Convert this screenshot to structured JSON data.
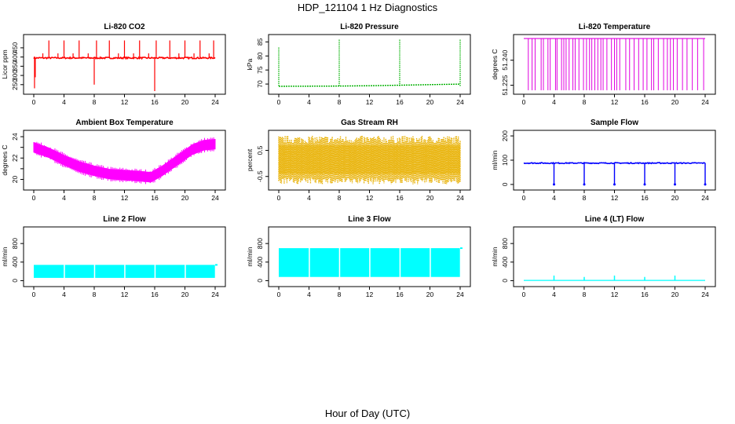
{
  "figure": {
    "title": "HDP_121104  1 Hz Diagnostics",
    "xlabel": "Hour of Day (UTC)"
  },
  "chart_data": [
    {
      "id": "co2",
      "type": "line",
      "title": "Li-820 CO2",
      "ylabel": "Licor ppm",
      "color": "#ff0000",
      "xlim": [
        0,
        24
      ],
      "ylim": [
        215,
        505
      ],
      "xticks": [
        0,
        4,
        8,
        12,
        16,
        20,
        24
      ],
      "yticks": [
        250,
        300,
        350,
        400,
        450
      ],
      "baseline": 395,
      "noise": 8,
      "spikes": [
        {
          "x": 0.1,
          "y": 230
        },
        {
          "x": 0.2,
          "y": 290
        },
        {
          "x": 1.2,
          "y": 420
        },
        {
          "x": 2.0,
          "y": 490
        },
        {
          "x": 3.2,
          "y": 420
        },
        {
          "x": 4.0,
          "y": 490
        },
        {
          "x": 5.2,
          "y": 420
        },
        {
          "x": 6.0,
          "y": 490
        },
        {
          "x": 7.2,
          "y": 420
        },
        {
          "x": 8.0,
          "y": 250
        },
        {
          "x": 8.3,
          "y": 490
        },
        {
          "x": 10.0,
          "y": 490
        },
        {
          "x": 11.2,
          "y": 420
        },
        {
          "x": 12.0,
          "y": 490
        },
        {
          "x": 13.2,
          "y": 420
        },
        {
          "x": 14.0,
          "y": 490
        },
        {
          "x": 15.2,
          "y": 420
        },
        {
          "x": 16.0,
          "y": 215
        },
        {
          "x": 16.2,
          "y": 490
        },
        {
          "x": 18.0,
          "y": 490
        },
        {
          "x": 19.2,
          "y": 420
        },
        {
          "x": 20.0,
          "y": 490
        },
        {
          "x": 21.2,
          "y": 420
        },
        {
          "x": 22.0,
          "y": 490
        },
        {
          "x": 23.2,
          "y": 420
        },
        {
          "x": 23.8,
          "y": 490
        }
      ]
    },
    {
      "id": "pressure",
      "type": "line",
      "title": "Li-820 Pressure",
      "ylabel": "kPa",
      "color": "#00b000",
      "xlim": [
        0,
        24
      ],
      "ylim": [
        67.5,
        86.5
      ],
      "xticks": [
        0,
        4,
        8,
        12,
        16,
        20,
        24
      ],
      "yticks": [
        70,
        75,
        80,
        85
      ],
      "trend": [
        {
          "x": 0,
          "y": 69.2
        },
        {
          "x": 8,
          "y": 69.3
        },
        {
          "x": 12,
          "y": 69.4
        },
        {
          "x": 16,
          "y": 69.6
        },
        {
          "x": 20,
          "y": 69.8
        },
        {
          "x": 24,
          "y": 70.0
        }
      ],
      "spikes": [
        {
          "x": 0.0,
          "y": 83
        },
        {
          "x": 8.0,
          "y": 86
        },
        {
          "x": 16.0,
          "y": 86
        },
        {
          "x": 24.0,
          "y": 86
        }
      ]
    },
    {
      "id": "licor_temp",
      "type": "line",
      "title": "Li-820 Temperature",
      "ylabel": "degrees C",
      "color": "#e000e0",
      "xlim": [
        0,
        24
      ],
      "ylim": [
        51.2215,
        51.2535
      ],
      "xticks": [
        0,
        4,
        8,
        12,
        16,
        20,
        24
      ],
      "yticks": [
        51.225,
        51.24
      ],
      "ytick_labels": [
        "51.225",
        "51.240"
      ],
      "high": 51.253,
      "low": 51.222,
      "drops": [
        0.6,
        1.1,
        1.5,
        2.3,
        2.6,
        3.2,
        3.5,
        4.2,
        4.4,
        5.0,
        5.3,
        5.6,
        6.0,
        6.5,
        6.8,
        7.3,
        7.9,
        8.3,
        8.7,
        9.0,
        9.4,
        9.8,
        10.2,
        10.5,
        11.0,
        11.6,
        12.0,
        12.3,
        12.7,
        13.5,
        14.0,
        14.6,
        15.2,
        15.8,
        16.3,
        16.9,
        17.2,
        17.8,
        18.5,
        19.0,
        19.4,
        19.8,
        20.3,
        21.0,
        21.6,
        22.3,
        23.0,
        23.8
      ]
    },
    {
      "id": "ambient",
      "type": "area",
      "title": "Ambient Box Temperature",
      "ylabel": "degrees C",
      "color": "#ff00ff",
      "xlim": [
        0,
        24
      ],
      "ylim": [
        19.3,
        24.3
      ],
      "xticks": [
        0,
        4,
        8,
        12,
        16,
        20,
        24
      ],
      "yticks": [
        20,
        21,
        22,
        23,
        24
      ],
      "ytick_labels": [
        "20",
        "",
        "22",
        "",
        "24"
      ],
      "center": [
        {
          "x": 0,
          "y": 23.0
        },
        {
          "x": 2,
          "y": 22.5
        },
        {
          "x": 4,
          "y": 21.8
        },
        {
          "x": 6,
          "y": 21.2
        },
        {
          "x": 8,
          "y": 20.8
        },
        {
          "x": 10,
          "y": 20.5
        },
        {
          "x": 12,
          "y": 20.4
        },
        {
          "x": 14,
          "y": 20.3
        },
        {
          "x": 15.5,
          "y": 20.2
        },
        {
          "x": 17,
          "y": 20.8
        },
        {
          "x": 19,
          "y": 21.8
        },
        {
          "x": 21,
          "y": 22.8
        },
        {
          "x": 22.5,
          "y": 23.2
        },
        {
          "x": 24,
          "y": 23.3
        }
      ],
      "spread": 0.45
    },
    {
      "id": "rh",
      "type": "area",
      "title": "Gas Stream RH",
      "ylabel": "percent",
      "color": "#e8b000",
      "xlim": [
        0,
        24
      ],
      "ylim": [
        -0.9,
        1.15
      ],
      "xticks": [
        0,
        4,
        8,
        12,
        16,
        20,
        24
      ],
      "yticks": [
        -0.5,
        0.5
      ],
      "ytick_labels": [
        "-0.5",
        "0.5"
      ],
      "upper": 0.85,
      "lower": -0.55
    },
    {
      "id": "sample_flow",
      "type": "line",
      "title": "Sample Flow",
      "ylabel": "ml/min",
      "color": "#0000ff",
      "xlim": [
        0,
        24
      ],
      "ylim": [
        -10,
        210
      ],
      "xticks": [
        0,
        4,
        8,
        12,
        16,
        20,
        24
      ],
      "yticks": [
        0,
        100,
        200
      ],
      "baseline": 88,
      "noise": 4,
      "drops": [
        4.0,
        8.0,
        12.0,
        16.0,
        20.0,
        24.0
      ]
    },
    {
      "id": "line2",
      "type": "area",
      "title": "Line 2 Flow",
      "ylabel": "ml/min",
      "color": "#00ffff",
      "xlim": [
        0,
        24
      ],
      "ylim": [
        -60,
        1090
      ],
      "xticks": [
        0,
        4,
        8,
        12,
        16,
        20,
        24
      ],
      "yticks": [
        0,
        400,
        800
      ],
      "ytick_labels": [
        "0",
        "400",
        "800"
      ],
      "upper": 340,
      "lower": 60,
      "gaps": [
        4.0,
        8.0,
        12.0,
        16.0,
        20.0,
        24.0
      ]
    },
    {
      "id": "line3",
      "type": "area",
      "title": "Line 3 Flow",
      "ylabel": "ml/min",
      "color": "#00ffff",
      "xlim": [
        0,
        24
      ],
      "ylim": [
        -60,
        1090
      ],
      "xticks": [
        0,
        4,
        8,
        12,
        16,
        20,
        24
      ],
      "yticks": [
        0,
        400,
        800
      ],
      "ytick_labels": [
        "0",
        "400",
        "800"
      ],
      "upper": 700,
      "lower": 80,
      "gaps": [
        4.0,
        8.0,
        12.0,
        16.0,
        20.0,
        24.0
      ]
    },
    {
      "id": "line4",
      "type": "line",
      "title": "Line 4 (LT) Flow",
      "ylabel": "ml/min",
      "color": "#00ffff",
      "xlim": [
        0,
        24
      ],
      "ylim": [
        -60,
        1090
      ],
      "xticks": [
        0,
        4,
        8,
        12,
        16,
        20,
        24
      ],
      "yticks": [
        0,
        400,
        800
      ],
      "ytick_labels": [
        "0",
        "400",
        "800"
      ],
      "baseline": 5,
      "spikes": [
        {
          "x": 4.0,
          "y": 110
        },
        {
          "x": 8.0,
          "y": 80
        },
        {
          "x": 12.0,
          "y": 110
        },
        {
          "x": 16.0,
          "y": 80
        },
        {
          "x": 20.0,
          "y": 110
        }
      ]
    }
  ]
}
